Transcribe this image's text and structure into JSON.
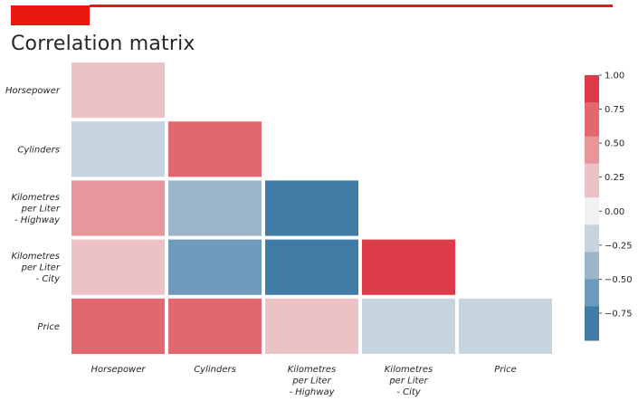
{
  "header": {
    "accent_color": "#e8170f",
    "title": "Correlation matrix"
  },
  "chart_data": {
    "type": "heatmap",
    "title": "Correlation matrix",
    "mask": "upper-triangle",
    "rows": [
      "Horsepower",
      "Cylinders",
      "Kilometres per Liter - Highway",
      "Kilometres per Liter - City",
      "Price"
    ],
    "row_label_lines": [
      [
        "Horsepower"
      ],
      [
        "Cylinders"
      ],
      [
        "Kilometres",
        "per Liter",
        "- Highway"
      ],
      [
        "Kilometres",
        "per Liter",
        "- City"
      ],
      [
        "Price"
      ]
    ],
    "columns": [
      "Horsepower",
      "Cylinders",
      "Kilometres per Liter - Highway",
      "Kilometres per Liter - City",
      "Price"
    ],
    "column_label_lines": [
      [
        "Horsepower"
      ],
      [
        "Cylinders"
      ],
      [
        "Kilometres",
        "per Liter",
        "- Highway"
      ],
      [
        "Kilometres",
        "per Liter",
        "- City"
      ],
      [
        "Price"
      ]
    ],
    "values": [
      [
        0.25,
        null,
        null,
        null,
        null
      ],
      [
        -0.15,
        0.65,
        null,
        null,
        null
      ],
      [
        0.45,
        -0.35,
        -0.85,
        null,
        null
      ],
      [
        0.25,
        -0.55,
        -0.85,
        0.9,
        null
      ],
      [
        0.65,
        0.65,
        0.25,
        -0.15,
        -0.15
      ]
    ],
    "colormap": "diverging blue-red (9 levels)",
    "vmin": -0.95,
    "vmax": 1.0,
    "colorbar": {
      "ticks": [
        1.0,
        0.75,
        0.5,
        0.25,
        0.0,
        -0.25,
        -0.5,
        -0.75
      ],
      "tick_labels": [
        "1.00",
        "0.75",
        "0.50",
        "0.25",
        "0.00",
        "−0.25",
        "−0.50",
        "−0.75"
      ],
      "bins": [
        {
          "lo": 0.8,
          "hi": 1.0,
          "color": "#dc3c48"
        },
        {
          "lo": 0.55,
          "hi": 0.8,
          "color": "#e3676f"
        },
        {
          "lo": 0.35,
          "hi": 0.55,
          "color": "#e8969b"
        },
        {
          "lo": 0.1,
          "hi": 0.35,
          "color": "#ecc2c6"
        },
        {
          "lo": -0.1,
          "hi": 0.1,
          "color": "#f2f2f2"
        },
        {
          "lo": -0.3,
          "hi": -0.1,
          "color": "#c6d4df"
        },
        {
          "lo": -0.5,
          "hi": -0.3,
          "color": "#9bb6cb"
        },
        {
          "lo": -0.7,
          "hi": -0.5,
          "color": "#6e9bbb"
        },
        {
          "lo": -0.95,
          "hi": -0.7,
          "color": "#417ca7"
        }
      ]
    }
  }
}
